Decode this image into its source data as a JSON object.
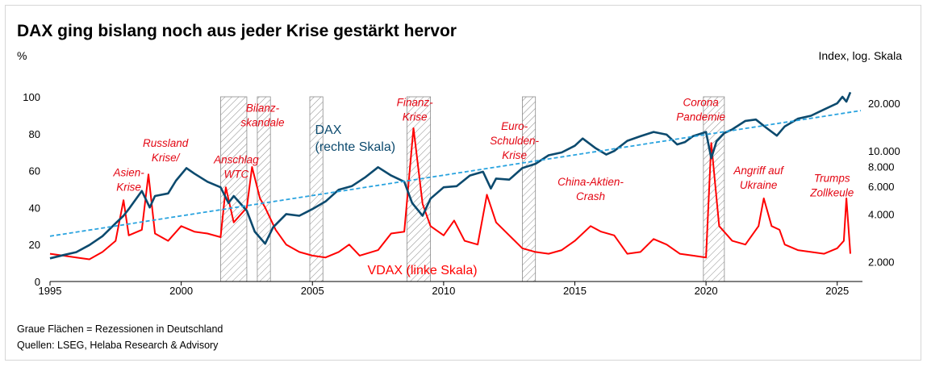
{
  "header": {
    "title": "DAX ging bislang noch aus jeder Krise gestärkt hervor",
    "left_unit": "%",
    "right_unit": "Index, log. Skala"
  },
  "footer": {
    "note": "Graue Flächen = Rezessionen in Deutschland",
    "source": "Quellen: LSEG, Helaba Research & Advisory"
  },
  "colors": {
    "dax": "#0c4a6e",
    "vdax": "#ff0000",
    "trend": "#29a3df",
    "annotation": "#e30613",
    "recession_hatch": "#8c8c8c"
  },
  "chart_data": {
    "type": "line",
    "x_axis": {
      "min": 1995,
      "max": 2025.9,
      "ticks": [
        "1995",
        "2000",
        "2005",
        "2010",
        "2015",
        "2020",
        "2025"
      ]
    },
    "y_left": {
      "label": "%",
      "min": 0,
      "max": 100,
      "ticks": [
        "0",
        "20",
        "40",
        "60",
        "80",
        "100"
      ]
    },
    "y_right": {
      "label": "Index, log. Skala",
      "scale": "log",
      "min": 1500,
      "max": 22000,
      "ticks": [
        "2.000",
        "4.000",
        "6.000",
        "8.000",
        "10.000",
        "20.000"
      ],
      "tick_values": [
        2000,
        4000,
        6000,
        8000,
        10000,
        20000
      ]
    },
    "grid": false,
    "recessions": [
      [
        2001.5,
        2002.5
      ],
      [
        2002.9,
        2003.4
      ],
      [
        2004.9,
        2005.4
      ],
      [
        2008.6,
        2009.5
      ],
      [
        2013.0,
        2013.5
      ],
      [
        2019.9,
        2020.7
      ]
    ],
    "series": [
      {
        "name": "DAX (rechte Skala)",
        "axis": "right",
        "x": [
          1995.0,
          1995.5,
          1996.0,
          1996.5,
          1997.0,
          1997.5,
          1997.8,
          1998.0,
          1998.5,
          1998.8,
          1999.0,
          1999.5,
          1999.8,
          2000.2,
          2000.5,
          2001.0,
          2001.5,
          2001.8,
          2002.0,
          2002.5,
          2002.8,
          2003.2,
          2003.5,
          2004.0,
          2004.5,
          2005.0,
          2005.5,
          2006.0,
          2006.5,
          2007.0,
          2007.5,
          2008.0,
          2008.5,
          2008.8,
          2009.2,
          2009.5,
          2010.0,
          2010.5,
          2011.0,
          2011.5,
          2011.8,
          2012.0,
          2012.5,
          2013.0,
          2013.5,
          2014.0,
          2014.5,
          2015.0,
          2015.3,
          2015.8,
          2016.2,
          2016.5,
          2017.0,
          2017.5,
          2018.0,
          2018.5,
          2018.9,
          2019.2,
          2019.5,
          2020.0,
          2020.2,
          2020.4,
          2020.7,
          2021.0,
          2021.5,
          2021.9,
          2022.3,
          2022.7,
          2023.0,
          2023.5,
          2024.0,
          2024.5,
          2025.0,
          2025.2,
          2025.35,
          2025.5
        ],
        "values": [
          2100,
          2200,
          2300,
          2550,
          2900,
          3500,
          3900,
          4300,
          5600,
          4400,
          5200,
          5400,
          6500,
          7800,
          7200,
          6400,
          5900,
          4700,
          5200,
          4200,
          3100,
          2600,
          3300,
          4000,
          3900,
          4300,
          4800,
          5700,
          6000,
          6800,
          7900,
          7000,
          6400,
          4700,
          3900,
          5000,
          5900,
          6000,
          7000,
          7400,
          5800,
          6700,
          6600,
          7800,
          8300,
          9400,
          9800,
          10800,
          12000,
          10400,
          9500,
          10000,
          11600,
          12400,
          13200,
          12700,
          11000,
          11400,
          12400,
          13200,
          9000,
          11500,
          13000,
          13700,
          15500,
          15800,
          14000,
          12500,
          14300,
          16000,
          16700,
          18300,
          20000,
          22000,
          20500,
          23500
        ]
      },
      {
        "name": "VDAX (linke Skala)",
        "axis": "left",
        "x": [
          1995.0,
          1995.5,
          1996.0,
          1996.5,
          1997.0,
          1997.5,
          1997.8,
          1998.0,
          1998.5,
          1998.75,
          1999.0,
          1999.5,
          2000.0,
          2000.5,
          2001.0,
          2001.5,
          2001.7,
          2002.0,
          2002.5,
          2002.7,
          2003.0,
          2003.2,
          2003.6,
          2004.0,
          2004.5,
          2005.0,
          2005.5,
          2006.0,
          2006.4,
          2006.8,
          2007.5,
          2008.0,
          2008.5,
          2008.85,
          2009.2,
          2009.5,
          2010.0,
          2010.4,
          2010.8,
          2011.3,
          2011.65,
          2012.0,
          2012.5,
          2013.0,
          2013.5,
          2014.0,
          2014.5,
          2015.0,
          2015.6,
          2016.0,
          2016.5,
          2017.0,
          2017.5,
          2018.0,
          2018.5,
          2019.0,
          2019.5,
          2020.0,
          2020.2,
          2020.5,
          2021.0,
          2021.5,
          2022.0,
          2022.2,
          2022.5,
          2022.8,
          2023.0,
          2023.5,
          2024.0,
          2024.5,
          2025.0,
          2025.25,
          2025.35,
          2025.5
        ],
        "values": [
          15,
          14,
          13,
          12,
          16,
          22,
          44,
          25,
          28,
          58,
          26,
          22,
          30,
          27,
          26,
          24,
          51,
          32,
          40,
          62,
          45,
          40,
          28,
          20,
          16,
          14,
          13,
          16,
          20,
          14,
          17,
          26,
          27,
          83,
          42,
          30,
          25,
          33,
          22,
          20,
          47,
          32,
          25,
          18,
          16,
          15,
          17,
          22,
          30,
          27,
          25,
          15,
          16,
          23,
          20,
          15,
          14,
          13,
          75,
          30,
          22,
          20,
          30,
          45,
          30,
          28,
          20,
          17,
          16,
          15,
          18,
          22,
          45,
          15
        ]
      },
      {
        "name": "Trend",
        "axis": "right",
        "style": "dashed",
        "x": [
          1995,
          2025.9
        ],
        "values": [
          2900,
          18000
        ]
      }
    ],
    "annotations": [
      {
        "text": [
          "Asien-",
          "Krise"
        ],
        "x": 1998.0,
        "y": 57
      },
      {
        "text": [
          "Russland",
          "Krise/"
        ],
        "x": 1999.4,
        "y": 73
      },
      {
        "text": [
          "Anschlag",
          "WTC"
        ],
        "x": 2002.1,
        "y": 64
      },
      {
        "text": [
          "Bilanz-",
          "skandale"
        ],
        "x": 2003.1,
        "y": 92
      },
      {
        "text": [
          "Finanz-",
          "Krise"
        ],
        "x": 2008.9,
        "y": 95
      },
      {
        "text": [
          "Euro-",
          "Schulden-",
          "Krise"
        ],
        "x": 2012.7,
        "y": 82
      },
      {
        "text": [
          "China-Aktien-",
          "Crash"
        ],
        "x": 2015.6,
        "y": 52
      },
      {
        "text": [
          "Corona",
          "Pandemie"
        ],
        "x": 2019.8,
        "y": 95
      },
      {
        "text": [
          "Angriff auf",
          "Ukraine"
        ],
        "x": 2022.0,
        "y": 58
      },
      {
        "text": [
          "Trumps",
          "Zollkeule"
        ],
        "x": 2024.8,
        "y": 54
      }
    ],
    "series_labels": [
      {
        "text": [
          "DAX",
          "(rechte Skala)"
        ],
        "x": 2005.1,
        "y": 80,
        "color": "#0c4a6e"
      },
      {
        "text": [
          "VDAX (linke Skala)"
        ],
        "x": 2007.1,
        "y": 4,
        "color": "#ff0000"
      }
    ]
  }
}
